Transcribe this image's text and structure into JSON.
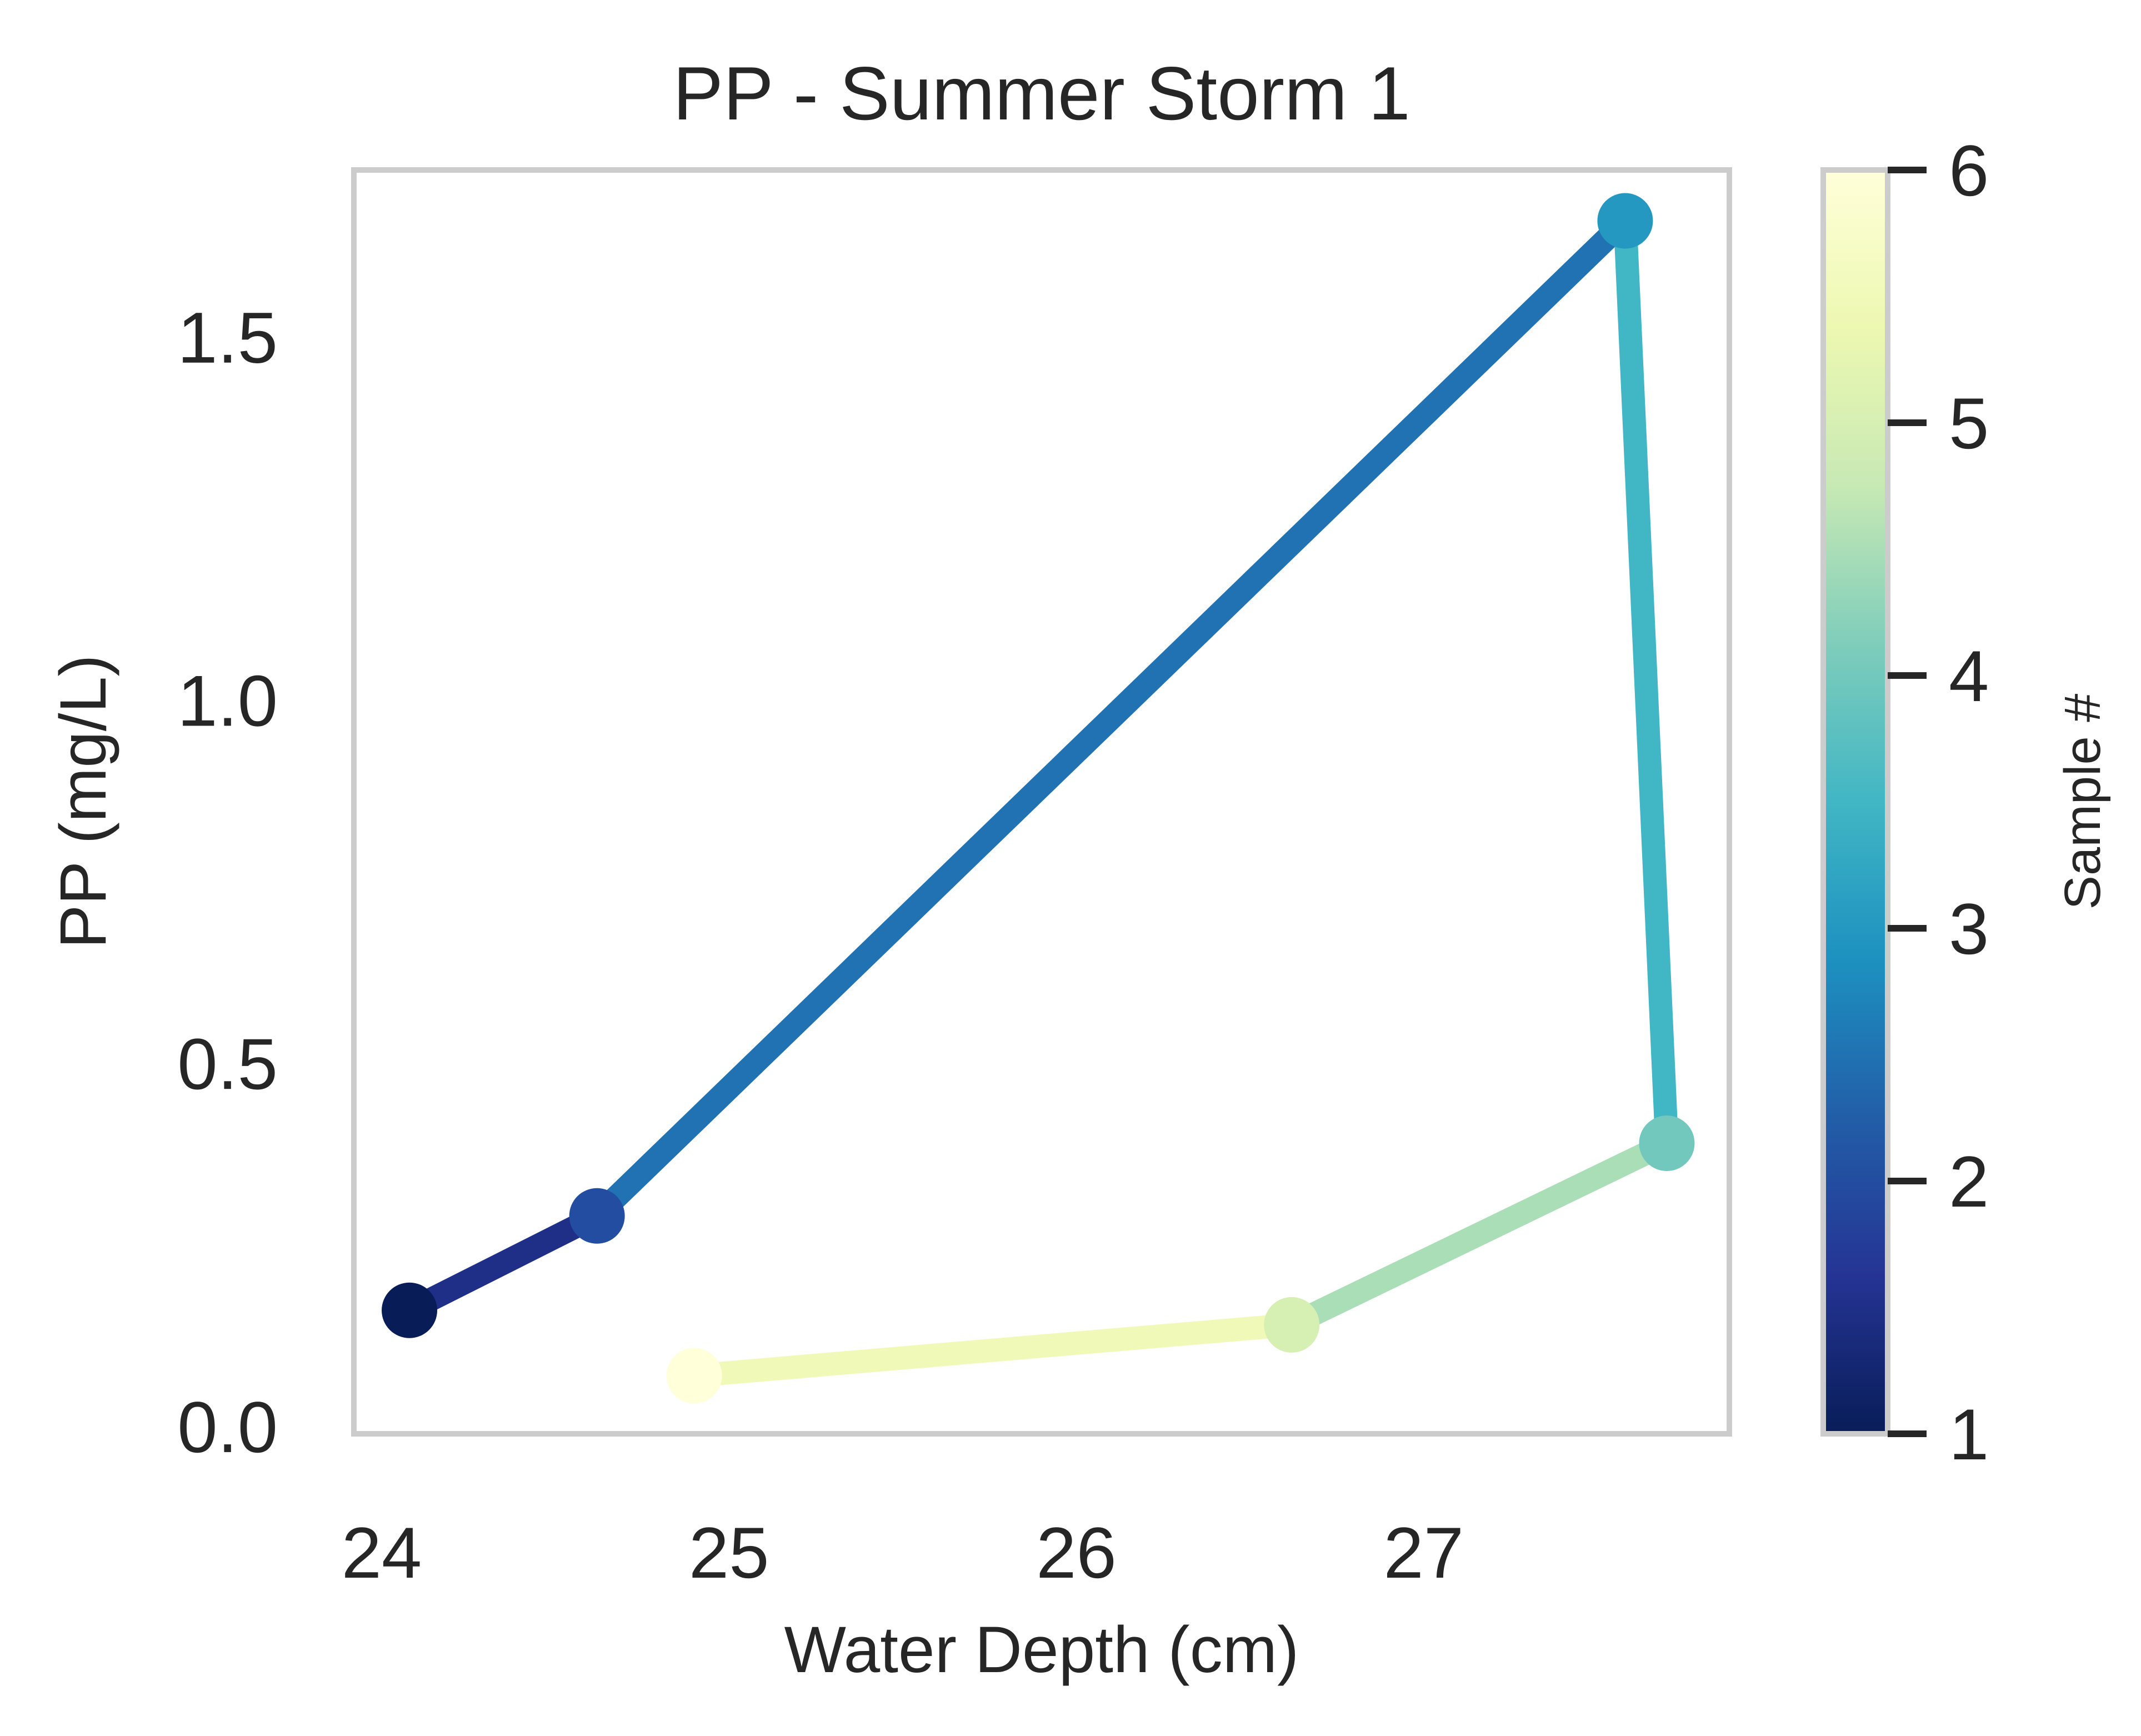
{
  "chart_data": {
    "type": "line",
    "title": "PP - Summer Storm 1",
    "xlabel": "Water Depth (cm)",
    "ylabel": "PP (mg/L)",
    "xlim": [
      23.92,
      27.88
    ],
    "ylim": [
      -0.01,
      1.73
    ],
    "xticks": [
      24,
      25,
      26,
      27
    ],
    "yticks": [
      0.0,
      0.5,
      1.0,
      1.5
    ],
    "xtick_labels": [
      "24",
      "25",
      "26",
      "27"
    ],
    "ytick_labels": [
      "0.0",
      "0.5",
      "1.0",
      "1.5"
    ],
    "grid": false,
    "series": [
      {
        "x": [
          24.08,
          24.62,
          27.58,
          27.7,
          26.62,
          24.9
        ],
        "y": [
          0.16,
          0.29,
          1.66,
          0.39,
          0.14,
          0.07
        ],
        "sample": [
          1,
          2,
          3,
          4,
          5,
          6
        ]
      }
    ],
    "colorbar": {
      "label": "Sample #",
      "range": [
        1,
        6
      ],
      "ticks": [
        1,
        2,
        3,
        4,
        5,
        6
      ],
      "tick_labels": [
        "1",
        "2",
        "3",
        "4",
        "5",
        "6"
      ],
      "colormap": "YlGnBu_r",
      "stops": [
        "#081d58",
        "#253494",
        "#225ea8",
        "#1d91c0",
        "#41b6c4",
        "#7fcdbb",
        "#c7e9b4",
        "#edf8b1",
        "#ffffd9"
      ]
    },
    "colors": {
      "text": "#262626",
      "frame": "#cccccc",
      "background": "#ffffff"
    }
  }
}
